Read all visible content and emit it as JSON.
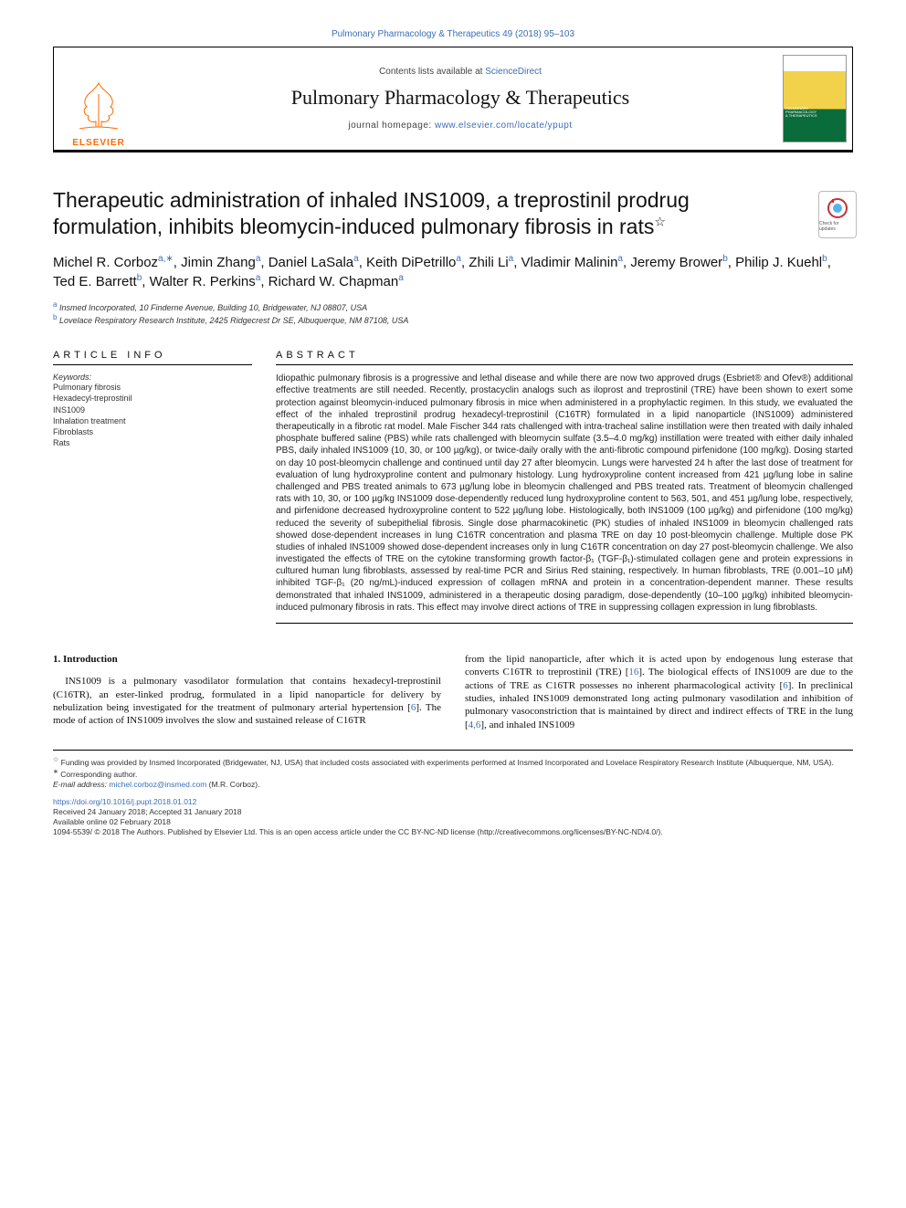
{
  "header": {
    "journal_citation": "Pulmonary Pharmacology & Therapeutics 49 (2018) 95–103",
    "contents_available": "Contents lists available at ",
    "sciencedirect": "ScienceDirect",
    "journal_name": "Pulmonary Pharmacology & Therapeutics",
    "homepage_label": "journal homepage: ",
    "homepage_url": "www.elsevier.com/locate/ypupt",
    "elsevier_label": "ELSEVIER",
    "cover_line1": "PULMONARY",
    "cover_line2": "PHARMACOLOGY",
    "cover_line3": "& THERAPEUTICS"
  },
  "title": "Therapeutic administration of inhaled INS1009, a treprostinil prodrug formulation, inhibits bleomycin-induced pulmonary fibrosis in rats",
  "title_note_mark": "☆",
  "check_badge": "Check for updates",
  "authors_html": "Michel R. Corboz<span class='aff'>a,</span><span class='aff'>∗</span>, Jimin Zhang<span class='aff'>a</span>, Daniel LaSala<span class='aff'>a</span>, Keith DiPetrillo<span class='aff'>a</span>, Zhili Li<span class='aff'>a</span>, Vladimir Malinin<span class='aff'>a</span>, Jeremy Brower<span class='aff'>b</span>, Philip J. Kuehl<span class='aff'>b</span>, Ted E. Barrett<span class='aff'>b</span>, Walter R. Perkins<span class='aff'>a</span>, Richard W. Chapman<span class='aff'>a</span>",
  "affiliations": {
    "a": "Insmed Incorporated, 10 Finderne Avenue, Building 10, Bridgewater, NJ 08807, USA",
    "b": "Lovelace Respiratory Research Institute, 2425 Ridgecrest Dr SE, Albuquerque, NM 87108, USA"
  },
  "article_info": {
    "heading": "ARTICLE INFO",
    "keywords_label": "Keywords:",
    "keywords": [
      "Pulmonary fibrosis",
      "Hexadecyl-treprostinil",
      "INS1009",
      "Inhalation treatment",
      "Fibroblasts",
      "Rats"
    ]
  },
  "abstract": {
    "heading": "ABSTRACT",
    "text": "Idiopathic pulmonary fibrosis is a progressive and lethal disease and while there are now two approved drugs (Esbriet® and Ofev®) additional effective treatments are still needed. Recently, prostacyclin analogs such as iloprost and treprostinil (TRE) have been shown to exert some protection against bleomycin-induced pulmonary fibrosis in mice when administered in a prophylactic regimen. In this study, we evaluated the effect of the inhaled treprostinil prodrug hexadecyl-treprostinil (C16TR) formulated in a lipid nanoparticle (INS1009) administered therapeutically in a fibrotic rat model. Male Fischer 344 rats challenged with intra-tracheal saline instillation were then treated with daily inhaled phosphate buffered saline (PBS) while rats challenged with bleomycin sulfate (3.5–4.0 mg/kg) instillation were treated with either daily inhaled PBS, daily inhaled INS1009 (10, 30, or 100 µg/kg), or twice-daily orally with the anti-fibrotic compound pirfenidone (100 mg/kg). Dosing started on day 10 post-bleomycin challenge and continued until day 27 after bleomycin. Lungs were harvested 24 h after the last dose of treatment for evaluation of lung hydroxyproline content and pulmonary histology. Lung hydroxyproline content increased from 421 µg/lung lobe in saline challenged and PBS treated animals to 673 µg/lung lobe in bleomycin challenged and PBS treated rats. Treatment of bleomycin challenged rats with 10, 30, or 100 µg/kg INS1009 dose-dependently reduced lung hydroxyproline content to 563, 501, and 451 µg/lung lobe, respectively, and pirfenidone decreased hydroxyproline content to 522 µg/lung lobe. Histologically, both INS1009 (100 µg/kg) and pirfenidone (100 mg/kg) reduced the severity of subepithelial fibrosis. Single dose pharmacokinetic (PK) studies of inhaled INS1009 in bleomycin challenged rats showed dose-dependent increases in lung C16TR concentration and plasma TRE on day 10 post-bleomycin challenge. Multiple dose PK studies of inhaled INS1009 showed dose-dependent increases only in lung C16TR concentration on day 27 post-bleomycin challenge. We also investigated the effects of TRE on the cytokine transforming growth factor-β₁ (TGF-β₁)-stimulated collagen gene and protein expressions in cultured human lung fibroblasts, assessed by real-time PCR and Sirius Red staining, respectively. In human fibroblasts, TRE (0.001–10 µM) inhibited TGF-β₁ (20 ng/mL)-induced expression of collagen mRNA and protein in a concentration-dependent manner. These results demonstrated that inhaled INS1009, administered in a therapeutic dosing paradigm, dose-dependently (10–100 µg/kg) inhibited bleomycin-induced pulmonary fibrosis in rats. This effect may involve direct actions of TRE in suppressing collagen expression in lung fibroblasts."
  },
  "body": {
    "intro_heading": "1. Introduction",
    "col1": "INS1009 is a pulmonary vasodilator formulation that contains hexadecyl-treprostinil (C16TR), an ester-linked prodrug, formulated in a lipid nanoparticle for delivery by nebulization being investigated for the treatment of pulmonary arterial hypertension [6]. The mode of action of INS1009 involves the slow and sustained release of C16TR",
    "col2": "from the lipid nanoparticle, after which it is acted upon by endogenous lung esterase that converts C16TR to treprostinil (TRE) [16]. The biological effects of INS1009 are due to the actions of TRE as C16TR possesses no inherent pharmacological activity [6]. In preclinical studies, inhaled INS1009 demonstrated long acting pulmonary vasodilation and inhibition of pulmonary vasoconstriction that is maintained by direct and indirect effects of TRE in the lung [4,6], and inhaled INS1009"
  },
  "footnotes": {
    "funding_mark": "☆",
    "funding": "Funding was provided by Insmed Incorporated (Bridgewater, NJ, USA) that included costs associated with experiments performed at Insmed Incorporated and Lovelace Respiratory Research Institute (Albuquerque, NM, USA).",
    "corr_mark": "∗",
    "corr": "Corresponding author.",
    "email_label": "E-mail address: ",
    "email": "michel.corboz@insmed.com",
    "email_attrib": " (M.R. Corboz)."
  },
  "pub": {
    "doi": "https://doi.org/10.1016/j.pupt.2018.01.012",
    "received": "Received 24 January 2018; Accepted 31 January 2018",
    "online": "Available online 02 February 2018",
    "issn_license": "1094-5539/ © 2018 The Authors. Published by Elsevier Ltd. This is an open access article under the CC BY-NC-ND license (http://creativecommons.org/licenses/BY-NC-ND/4.0/)."
  },
  "colors": {
    "link": "#3b6fb6",
    "elsevier_orange": "#ff6a00",
    "cover_yellow": "#f2d24a",
    "cover_green": "#0a6b3b"
  }
}
